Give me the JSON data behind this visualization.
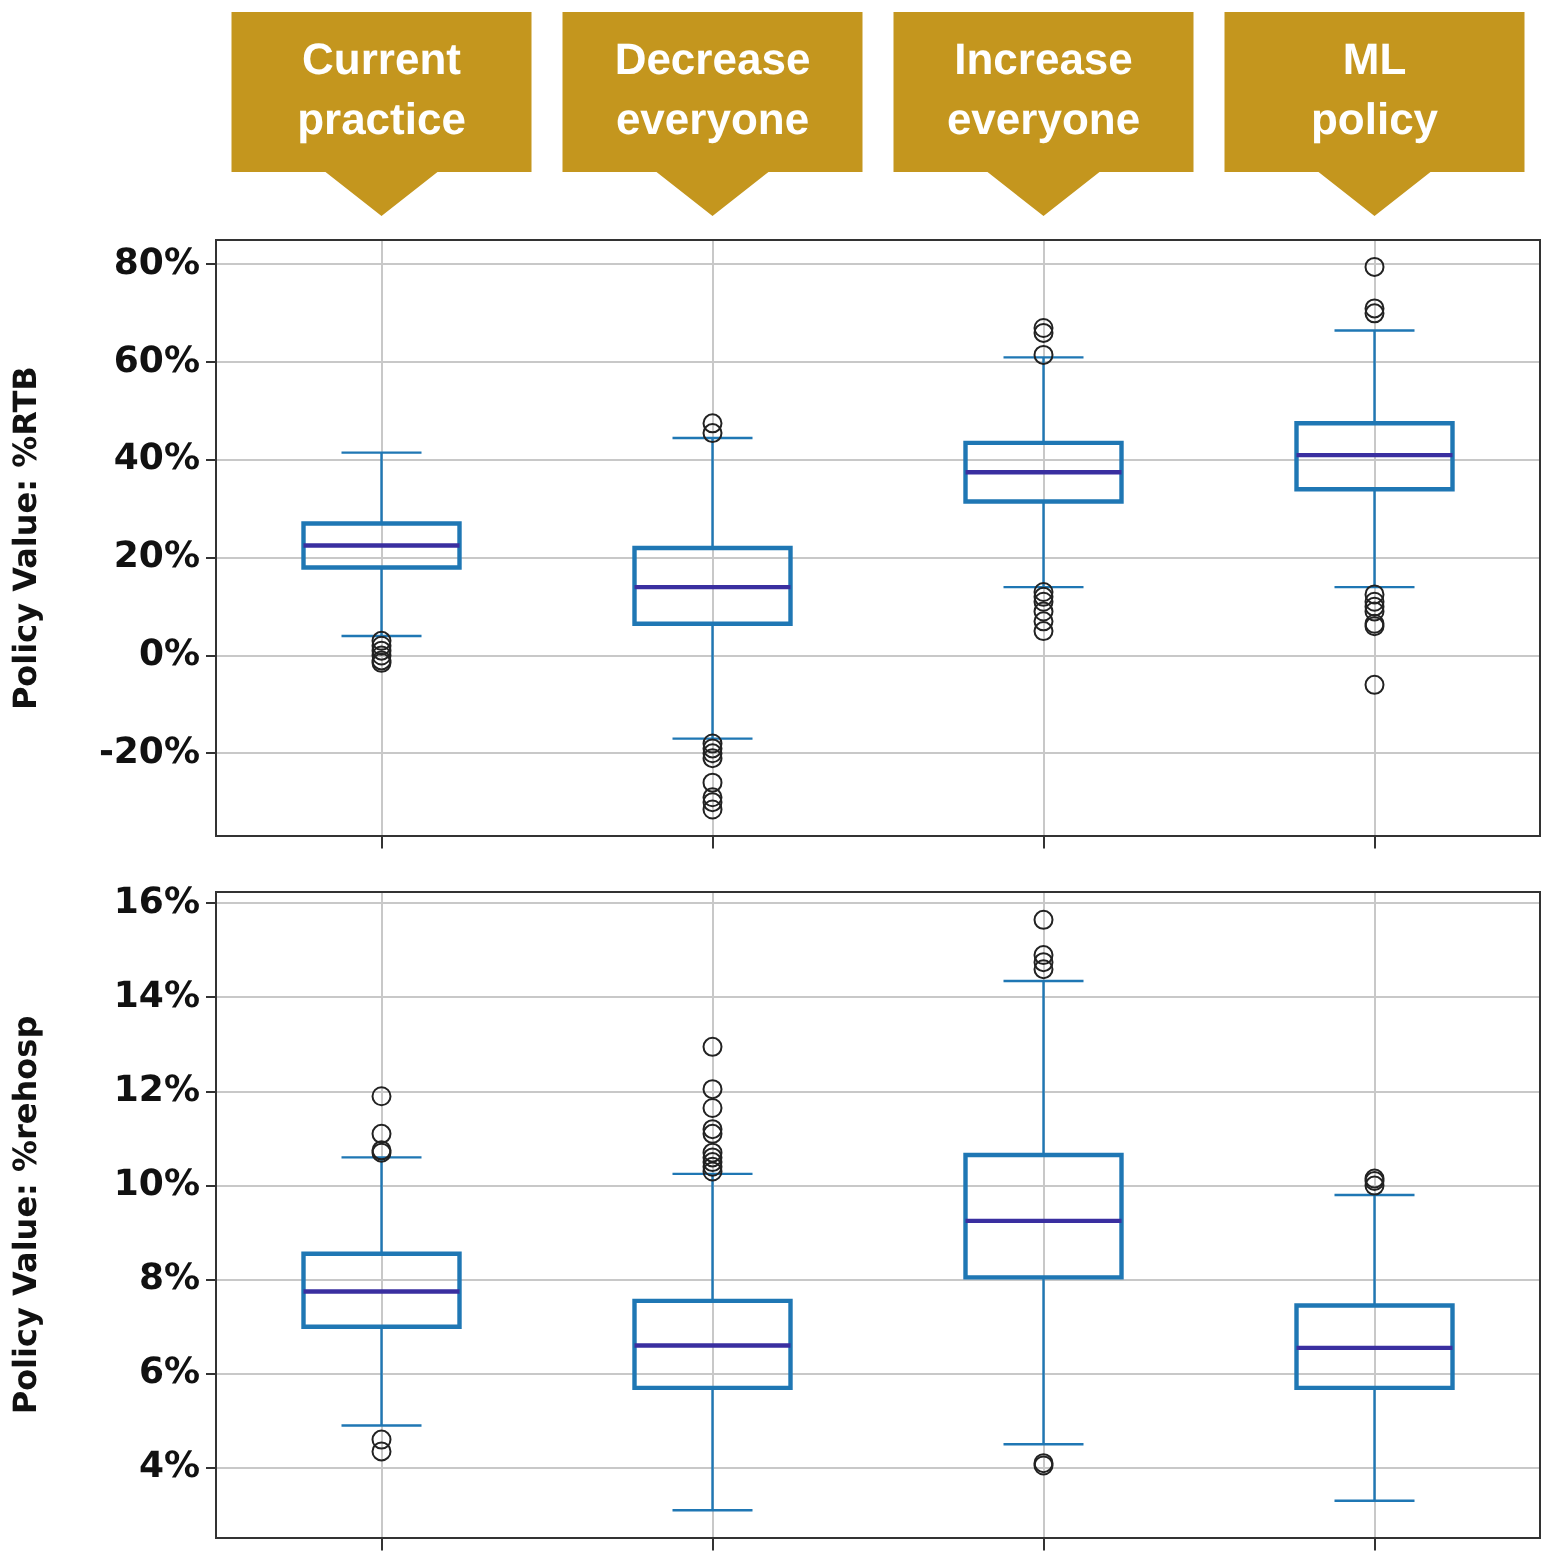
{
  "chart_data": [
    {
      "type": "box",
      "categories": [
        "Current practice",
        "Decrease everyone",
        "Increase everyone",
        "ML policy"
      ],
      "ylabel": "Policy Value: %RTB",
      "ylim": [
        -37,
        85
      ],
      "yticks": [
        {
          "value": -20,
          "label": "-20%"
        },
        {
          "value": 0,
          "label": "0%"
        },
        {
          "value": 20,
          "label": "20%"
        },
        {
          "value": 40,
          "label": "40%"
        },
        {
          "value": 60,
          "label": "60%"
        },
        {
          "value": 80,
          "label": "80%"
        }
      ],
      "grid": true,
      "marker": "circle",
      "series": [
        {
          "color": "#1f77b4",
          "boxes": [
            {
              "low": 4,
              "q1": 18,
              "median": 22.5,
              "q3": 27,
              "high": 41.5,
              "outliers": [
                3,
                2,
                1,
                0,
                -1,
                -1.5
              ]
            },
            {
              "low": -17,
              "q1": 6.5,
              "median": 14,
              "q3": 22,
              "high": 44.5,
              "outliers": [
                45.5,
                47.5,
                -18,
                -19,
                -20,
                -21,
                -26,
                -29,
                -30,
                -31.5
              ]
            },
            {
              "low": 14,
              "q1": 31.5,
              "median": 37.5,
              "q3": 43.5,
              "high": 61,
              "outliers": [
                61.5,
                66,
                67,
                13,
                12,
                11,
                9,
                7,
                5
              ]
            },
            {
              "low": 14,
              "q1": 34,
              "median": 41,
              "q3": 47.5,
              "high": 66.5,
              "outliers": [
                70,
                71,
                79.5,
                12.5,
                11,
                10,
                9,
                6.5,
                6,
                -6
              ]
            }
          ]
        }
      ]
    },
    {
      "type": "box",
      "categories": [
        null,
        null,
        null,
        null
      ],
      "tick_labels": "y",
      "ylabel": "Policy Value: %rehosp",
      "ylim": [
        2.5,
        16.25
      ],
      "yticks": [
        {
          "value": 4,
          "label": "4%"
        },
        {
          "value": 6,
          "label": "6%"
        },
        {
          "value": 8,
          "label": "8%"
        },
        {
          "value": 10,
          "label": "10%"
        },
        {
          "value": 12,
          "label": "12%"
        },
        {
          "value": 14,
          "label": "14%"
        },
        {
          "value": 16,
          "label": "16%"
        }
      ],
      "grid": true,
      "marker": "circle",
      "series": [
        {
          "color": "#1f77b4",
          "boxes": [
            {
              "low": 4.9,
              "q1": 7,
              "median": 7.75,
              "q3": 8.55,
              "high": 10.6,
              "outliers": [
                10.7,
                10.75,
                11.1,
                11.9,
                4.6,
                4.35
              ]
            },
            {
              "low": 3.1,
              "q1": 5.7,
              "median": 6.6,
              "q3": 7.55,
              "high": 10.25,
              "outliers": [
                10.3,
                10.4,
                10.5,
                10.6,
                10.7,
                11.1,
                11.2,
                11.65,
                12.05,
                12.95
              ]
            },
            {
              "low": 4.5,
              "q1": 8.05,
              "median": 9.25,
              "q3": 10.65,
              "high": 14.35,
              "outliers": [
                14.6,
                14.75,
                14.9,
                15.65,
                4.1,
                4.05
              ]
            },
            {
              "low": 3.3,
              "q1": 5.7,
              "median": 6.55,
              "q3": 7.45,
              "high": 9.8,
              "outliers": [
                10,
                10.1,
                10.15
              ]
            }
          ]
        }
      ]
    }
  ]
}
